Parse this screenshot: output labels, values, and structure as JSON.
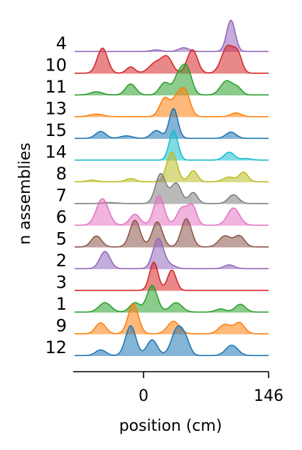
{
  "chart_data": {
    "type": "ridgeline",
    "xlabel": "position (cm)",
    "ylabel": "n assemblies",
    "xticks": [
      {
        "value": 0,
        "label": "0"
      },
      {
        "value": 146,
        "label": "146"
      }
    ],
    "xlim": [
      -80,
      146
    ],
    "grid": false,
    "legend": "none",
    "rows": [
      {
        "label": "4",
        "color": "#9467bd",
        "peaks": [
          [
            102,
            5,
            1.0
          ],
          [
            47,
            6,
            0.12
          ],
          [
            15,
            6,
            0.05
          ]
        ]
      },
      {
        "label": "10",
        "color": "#d62728",
        "peaks": [
          [
            -48,
            6,
            0.8
          ],
          [
            -15,
            5,
            0.2
          ],
          [
            15,
            8,
            0.35
          ],
          [
            28,
            6,
            0.45
          ],
          [
            57,
            6,
            0.75
          ],
          [
            98,
            7,
            0.85
          ],
          [
            110,
            5,
            0.55
          ]
        ]
      },
      {
        "label": "11",
        "color": "#2ca02c",
        "peaks": [
          [
            -55,
            7,
            0.1
          ],
          [
            -15,
            6,
            0.35
          ],
          [
            25,
            6,
            0.4
          ],
          [
            50,
            6,
            0.9
          ],
          [
            40,
            5,
            0.5
          ],
          [
            97,
            7,
            0.45
          ],
          [
            110,
            5,
            0.2
          ]
        ]
      },
      {
        "label": "13",
        "color": "#ff7f0e",
        "peaks": [
          [
            -55,
            8,
            0.08
          ],
          [
            25,
            6,
            0.6
          ],
          [
            48,
            6,
            0.85
          ],
          [
            38,
            5,
            0.45
          ],
          [
            108,
            6,
            0.12
          ]
        ]
      },
      {
        "label": "15",
        "color": "#1f77b4",
        "peaks": [
          [
            -50,
            6,
            0.22
          ],
          [
            -20,
            7,
            0.08
          ],
          [
            15,
            6,
            0.25
          ],
          [
            35,
            5,
            0.95
          ],
          [
            102,
            6,
            0.2
          ]
        ]
      },
      {
        "label": "14",
        "color": "#17becf",
        "peaks": [
          [
            35,
            5,
            0.95
          ],
          [
            100,
            6,
            0.25
          ],
          [
            120,
            6,
            0.05
          ]
        ]
      },
      {
        "label": "8",
        "color": "#bcbd22",
        "peaks": [
          [
            -60,
            6,
            0.05
          ],
          [
            -15,
            6,
            0.1
          ],
          [
            33,
            6,
            0.95
          ],
          [
            58,
            5,
            0.35
          ],
          [
            100,
            7,
            0.15
          ],
          [
            117,
            5,
            0.3
          ]
        ]
      },
      {
        "label": "7",
        "color": "#7f7f7f",
        "peaks": [
          [
            -40,
            8,
            0.03
          ],
          [
            20,
            6,
            0.95
          ],
          [
            38,
            6,
            0.65
          ],
          [
            58,
            5,
            0.35
          ],
          [
            105,
            6,
            0.28
          ]
        ]
      },
      {
        "label": "6",
        "color": "#e377c2",
        "peaks": [
          [
            -48,
            7,
            0.85
          ],
          [
            -10,
            6,
            0.35
          ],
          [
            18,
            6,
            0.95
          ],
          [
            45,
            6,
            0.55
          ],
          [
            57,
            5,
            0.6
          ],
          [
            105,
            7,
            0.55
          ]
        ]
      },
      {
        "label": "5",
        "color": "#8c564b",
        "peaks": [
          [
            -55,
            6,
            0.35
          ],
          [
            -10,
            6,
            0.85
          ],
          [
            16,
            6,
            0.8
          ],
          [
            50,
            6,
            0.9
          ],
          [
            95,
            7,
            0.35
          ],
          [
            112,
            6,
            0.35
          ]
        ]
      },
      {
        "label": "2",
        "color": "#9467bd",
        "peaks": [
          [
            -45,
            6,
            0.55
          ],
          [
            17,
            6,
            0.95
          ],
          [
            30,
            7,
            0.12
          ],
          [
            100,
            6,
            0.12
          ]
        ]
      },
      {
        "label": "3",
        "color": "#d62728",
        "peaks": [
          [
            12,
            5,
            0.9
          ],
          [
            33,
            5,
            0.65
          ]
        ]
      },
      {
        "label": "1",
        "color": "#2ca02c",
        "peaks": [
          [
            -45,
            7,
            0.3
          ],
          [
            -10,
            6,
            0.3
          ],
          [
            10,
            6,
            0.85
          ],
          [
            38,
            7,
            0.3
          ],
          [
            90,
            6,
            0.1
          ],
          [
            113,
            6,
            0.25
          ]
        ]
      },
      {
        "label": "9",
        "color": "#ff7f0e",
        "peaks": [
          [
            -50,
            6,
            0.35
          ],
          [
            -12,
            6,
            0.95
          ],
          [
            35,
            7,
            0.4
          ],
          [
            95,
            7,
            0.3
          ],
          [
            112,
            6,
            0.35
          ]
        ]
      },
      {
        "label": "12",
        "color": "#1f77b4",
        "peaks": [
          [
            -50,
            6,
            0.18
          ],
          [
            -15,
            6,
            0.95
          ],
          [
            10,
            6,
            0.5
          ],
          [
            40,
            7,
            0.9
          ],
          [
            50,
            5,
            0.3
          ],
          [
            103,
            7,
            0.33
          ]
        ]
      }
    ]
  }
}
